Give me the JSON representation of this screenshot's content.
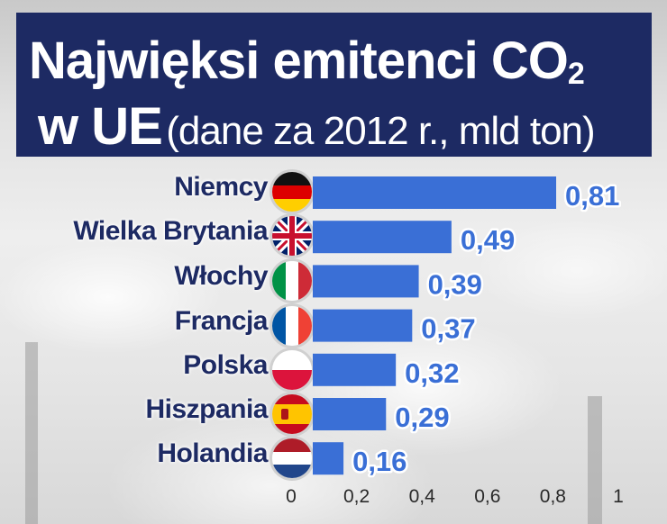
{
  "title": {
    "line1_main": "Najwięksi emitenci CO",
    "line1_sub": "2",
    "line2_main": "w UE",
    "line2_sub": "(dane za 2012 r., mld ton)"
  },
  "colors": {
    "bar": "#3a6fd6",
    "title_bg": "#1d2a63"
  },
  "chart_data": {
    "type": "bar",
    "orientation": "horizontal",
    "categories": [
      "Niemcy",
      "Wielka Brytania",
      "Włochy",
      "Francja",
      "Polska",
      "Hiszpania",
      "Holandia"
    ],
    "values": [
      0.81,
      0.49,
      0.39,
      0.37,
      0.32,
      0.29,
      0.16
    ],
    "value_labels": [
      "0,81",
      "0,49",
      "0,39",
      "0,37",
      "0,32",
      "0,29",
      "0,16"
    ],
    "flags": [
      "germany-flag-icon",
      "uk-flag-icon",
      "italy-flag-icon",
      "france-flag-icon",
      "poland-flag-icon",
      "spain-flag-icon",
      "netherlands-flag-icon"
    ],
    "xlim": [
      0,
      1
    ],
    "xticks": [
      0,
      0.2,
      0.4,
      0.6,
      0.8,
      1
    ],
    "xtick_labels": [
      "0",
      "0,2",
      "0,4",
      "0,6",
      "0,8",
      "1"
    ],
    "grid": false
  }
}
